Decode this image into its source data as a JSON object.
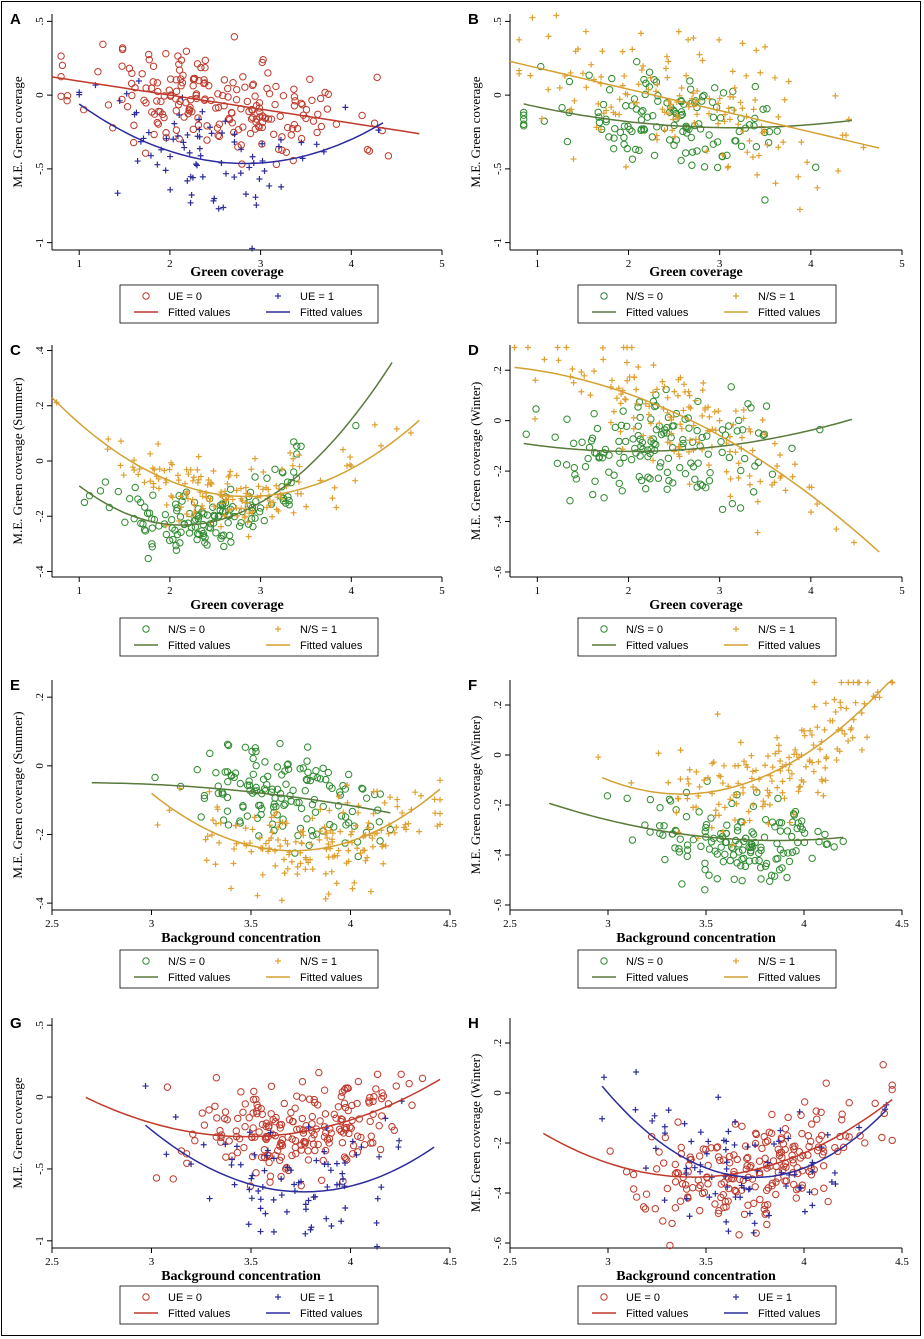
{
  "chart_data": [
    {
      "panel": "A",
      "type": "scatter",
      "xlabel": "Green coverage",
      "ylabel": "M.E. Green coverage",
      "xlim": [
        0.7,
        5.0
      ],
      "ylim": [
        -1.05,
        0.55
      ],
      "xticks": [
        1,
        2,
        3,
        4,
        5
      ],
      "yticks": [
        -1,
        -0.5,
        0,
        0.5
      ],
      "xtick_labels": [
        "1",
        "2",
        "3",
        "4",
        "5"
      ],
      "ytick_labels": [
        "-1",
        "-.5",
        "0",
        ".5"
      ],
      "series": [
        {
          "name": "UE = 0",
          "marker": "circle",
          "color": "#c0392b",
          "n": 210,
          "xmean": 2.55,
          "xsd": 0.75,
          "xmin": 0.8,
          "xmax": 4.7,
          "noise": 0.17,
          "seed": 11
        },
        {
          "name": "UE = 1",
          "marker": "plus",
          "color": "#2c2c9e",
          "n": 80,
          "xmean": 2.45,
          "xsd": 0.7,
          "xmin": 1.0,
          "xmax": 4.3,
          "noise": 0.2,
          "seed": 12
        }
      ],
      "fits": [
        {
          "name": "Fitted values",
          "color": "#c0392b",
          "x0": 0.7,
          "x1": 4.75,
          "coef": [
            0.19,
            -0.095,
            0
          ]
        },
        {
          "name": "Fitted values",
          "color": "#2c2c9e",
          "x0": 1.0,
          "x1": 4.35,
          "coef": [
            0.5,
            -0.68,
            0.12
          ]
        }
      ],
      "legend": [
        "UE = 0",
        "UE = 1",
        "Fitted values",
        "Fitted values"
      ]
    },
    {
      "panel": "B",
      "type": "scatter",
      "xlabel": "Green coverage",
      "ylabel": "M.E. Green coverage",
      "xlim": [
        0.7,
        5.0
      ],
      "ylim": [
        -1.05,
        0.55
      ],
      "xticks": [
        1,
        2,
        3,
        4,
        5
      ],
      "yticks": [
        -1,
        -0.5,
        0,
        0.5
      ],
      "xtick_labels": [
        "1",
        "2",
        "3",
        "4",
        "5"
      ],
      "ytick_labels": [
        "-1",
        "-.5",
        "0",
        ".5"
      ],
      "series": [
        {
          "name": "N/S = 0",
          "marker": "circle",
          "color": "#2e8b2e",
          "n": 140,
          "xmean": 2.5,
          "xsd": 0.7,
          "xmin": 0.85,
          "xmax": 4.45,
          "noise": 0.16,
          "seed": 21
        },
        {
          "name": "N/S = 1",
          "marker": "plus",
          "color": "#e0a030",
          "n": 150,
          "xmean": 2.6,
          "xsd": 0.8,
          "xmin": 0.8,
          "xmax": 4.7,
          "noise": 0.2,
          "seed": 22
        }
      ],
      "fits": [
        {
          "name": "Fitted values",
          "color": "#5a7a3a",
          "x0": 0.85,
          "x1": 4.45,
          "coef": [
            0.08,
            -0.19,
            0.03
          ]
        },
        {
          "name": "Fitted values",
          "color": "#d4a030",
          "x0": 0.7,
          "x1": 4.75,
          "coef": [
            0.33,
            -0.145,
            0
          ]
        }
      ],
      "legend": [
        "N/S = 0",
        "N/S = 1",
        "Fitted values",
        "Fitted values"
      ]
    },
    {
      "panel": "C",
      "type": "scatter",
      "xlabel": "Green coverage",
      "ylabel": "M.E. Green coverage (Summer)",
      "xlim": [
        0.7,
        5.0
      ],
      "ylim": [
        -0.42,
        0.42
      ],
      "xticks": [
        1,
        2,
        3,
        4,
        5
      ],
      "yticks": [
        -0.4,
        -0.2,
        0,
        0.2,
        0.4
      ],
      "xtick_labels": [
        "1",
        "2",
        "3",
        "4",
        "5"
      ],
      "ytick_labels": [
        "-.4",
        "-.2",
        "0",
        ".2",
        ".4"
      ],
      "series": [
        {
          "name": "N/S = 0",
          "marker": "circle",
          "color": "#2e8b2e",
          "n": 150,
          "xmean": 2.4,
          "xsd": 0.6,
          "xmin": 0.85,
          "xmax": 4.45,
          "noise": 0.055,
          "seed": 31
        },
        {
          "name": "N/S = 1",
          "marker": "plus",
          "color": "#e0a030",
          "n": 160,
          "xmean": 2.5,
          "xsd": 0.8,
          "xmin": 0.75,
          "xmax": 4.7,
          "noise": 0.06,
          "seed": 32
        }
      ],
      "fits": [
        {
          "name": "Fitted values",
          "color": "#5a7a3a",
          "x0": 1.0,
          "x1": 4.45,
          "coef": [
            0.27,
            -0.47,
            0.11
          ]
        },
        {
          "name": "Fitted values",
          "color": "#d4a030",
          "x0": 0.7,
          "x1": 4.75,
          "coef": [
            0.5,
            -0.44,
            0.077
          ]
        }
      ],
      "legend": [
        "N/S = 0",
        "N/S = 1",
        "Fitted values",
        "Fitted values"
      ]
    },
    {
      "panel": "D",
      "type": "scatter",
      "xlabel": "Green coverage",
      "ylabel": "M.E. Green coverage (Winter)",
      "xlim": [
        0.7,
        5.0
      ],
      "ylim": [
        -0.62,
        0.3
      ],
      "xticks": [
        1,
        2,
        3,
        4,
        5
      ],
      "yticks": [
        -0.6,
        -0.4,
        -0.2,
        0,
        0.2
      ],
      "xtick_labels": [
        "1",
        "2",
        "3",
        "4",
        "5"
      ],
      "ytick_labels": [
        "-.6",
        "-.4",
        "-.2",
        "0",
        ".2"
      ],
      "series": [
        {
          "name": "N/S = 0",
          "marker": "circle",
          "color": "#2e8b2e",
          "n": 150,
          "xmean": 2.4,
          "xsd": 0.65,
          "xmin": 0.85,
          "xmax": 4.45,
          "noise": 0.1,
          "seed": 41
        },
        {
          "name": "N/S = 1",
          "marker": "plus",
          "color": "#e0a030",
          "n": 150,
          "xmean": 2.5,
          "xsd": 0.8,
          "xmin": 0.75,
          "xmax": 4.7,
          "noise": 0.11,
          "seed": 42
        }
      ],
      "fits": [
        {
          "name": "Fitted values",
          "color": "#5a7a3a",
          "x0": 0.85,
          "x1": 4.45,
          "coef": [
            -0.03,
            -0.09,
            0.022
          ]
        },
        {
          "name": "Fitted values",
          "color": "#d4a030",
          "x0": 0.75,
          "x1": 4.75,
          "coef": [
            0.22,
            0.015,
            -0.036
          ]
        }
      ],
      "legend": [
        "N/S = 0",
        "N/S = 1",
        "Fitted values",
        "Fitted values"
      ]
    },
    {
      "panel": "E",
      "type": "scatter",
      "xlabel": "Background concentration",
      "ylabel": "M.E. Green coverage (Summer)",
      "xlim": [
        2.5,
        4.5
      ],
      "ylim": [
        -0.42,
        0.25
      ],
      "xticks": [
        2.5,
        3,
        3.5,
        4,
        4.5
      ],
      "yticks": [
        -0.4,
        -0.2,
        0,
        0.2
      ],
      "xtick_labels": [
        "2.5",
        "3",
        "3.5",
        "4",
        "4.5"
      ],
      "ytick_labels": [
        "-.4",
        "-.2",
        "0",
        ".2"
      ],
      "series": [
        {
          "name": "N/S = 0",
          "marker": "circle",
          "color": "#2e8b2e",
          "n": 150,
          "xmean": 3.65,
          "xsd": 0.25,
          "xmin": 2.67,
          "xmax": 4.2,
          "noise": 0.07,
          "seed": 51
        },
        {
          "name": "N/S = 1",
          "marker": "plus",
          "color": "#e0a030",
          "n": 170,
          "xmean": 3.85,
          "xsd": 0.3,
          "xmin": 2.95,
          "xmax": 4.45,
          "noise": 0.07,
          "seed": 52
        }
      ],
      "fits": [
        {
          "name": "Fitted values",
          "color": "#5a7a3a",
          "x0": 2.7,
          "x1": 4.2,
          "coef": [
            -0.3,
            0.19,
            -0.036
          ]
        },
        {
          "name": "Fitted values",
          "color": "#d4a030",
          "x0": 3.0,
          "x1": 4.45,
          "coef": [
            4.3,
            -2.45,
            0.33
          ]
        }
      ],
      "legend": [
        "N/S = 0",
        "N/S = 1",
        "Fitted values",
        "Fitted values"
      ]
    },
    {
      "panel": "F",
      "type": "scatter",
      "xlabel": "Background concentration",
      "ylabel": "M.E. Green coverage (Winter)",
      "xlim": [
        2.5,
        4.5
      ],
      "ylim": [
        -0.62,
        0.3
      ],
      "xticks": [
        2.5,
        3,
        3.5,
        4,
        4.5
      ],
      "yticks": [
        -0.6,
        -0.4,
        -0.2,
        0,
        0.2
      ],
      "xtick_labels": [
        "2.5",
        "3",
        "3.5",
        "4",
        "4.5"
      ],
      "ytick_labels": [
        "-.6",
        "-.4",
        "-.2",
        "0",
        ".2"
      ],
      "series": [
        {
          "name": "N/S = 0",
          "marker": "circle",
          "color": "#2e8b2e",
          "n": 150,
          "xmean": 3.65,
          "xsd": 0.25,
          "xmin": 2.67,
          "xmax": 4.2,
          "noise": 0.09,
          "seed": 61
        },
        {
          "name": "N/S = 1",
          "marker": "plus",
          "color": "#e0a030",
          "n": 170,
          "xmean": 3.85,
          "xsd": 0.3,
          "xmin": 2.95,
          "xmax": 4.45,
          "noise": 0.1,
          "seed": 62
        }
      ],
      "fits": [
        {
          "name": "Fitted values",
          "color": "#5a7a3a",
          "x0": 2.7,
          "x1": 4.2,
          "coef": [
            1.3,
            -0.85,
            0.11
          ]
        },
        {
          "name": "Fitted values",
          "color": "#d4a030",
          "x0": 2.97,
          "x1": 4.45,
          "coef": [
            4.4,
            -2.7,
            0.4
          ]
        }
      ],
      "legend": [
        "N/S = 0",
        "N/S = 1",
        "Fitted values",
        "Fitted values"
      ]
    },
    {
      "panel": "G",
      "type": "scatter",
      "xlabel": "Background concentration",
      "ylabel": "M.E. Green coverage",
      "xlim": [
        2.5,
        4.5
      ],
      "ylim": [
        -1.05,
        0.55
      ],
      "xticks": [
        2.5,
        3,
        3.5,
        4,
        4.5
      ],
      "yticks": [
        -1,
        -0.5,
        0,
        0.5
      ],
      "xtick_labels": [
        "2.5",
        "3",
        "3.5",
        "4",
        "4.5"
      ],
      "ytick_labels": [
        "-1",
        "-.5",
        "0",
        ".5"
      ],
      "series": [
        {
          "name": "UE = 0",
          "marker": "circle",
          "color": "#c0392b",
          "n": 220,
          "xmean": 3.75,
          "xsd": 0.3,
          "xmin": 2.67,
          "xmax": 4.45,
          "noise": 0.17,
          "seed": 71
        },
        {
          "name": "UE = 1",
          "marker": "plus",
          "color": "#2c2c9e",
          "n": 80,
          "xmean": 3.7,
          "xsd": 0.3,
          "xmin": 2.97,
          "xmax": 4.42,
          "noise": 0.19,
          "seed": 72
        }
      ],
      "fits": [
        {
          "name": "Fitted values",
          "color": "#c0392b",
          "x0": 2.67,
          "x1": 4.45,
          "coef": [
            4.8,
            -2.92,
            0.42
          ]
        },
        {
          "name": "Fitted values",
          "color": "#2c2c9e",
          "x0": 2.97,
          "x1": 4.42,
          "coef": [
            9.7,
            -5.5,
            0.73
          ]
        }
      ],
      "legend": [
        "UE = 0",
        "UE = 1",
        "Fitted values",
        "Fitted values"
      ]
    },
    {
      "panel": "H",
      "type": "scatter",
      "xlabel": "Background concentration",
      "ylabel": "M.E. Green coverage (Winter)",
      "xlim": [
        2.5,
        4.5
      ],
      "ylim": [
        -0.62,
        0.3
      ],
      "xticks": [
        2.5,
        3,
        3.5,
        4,
        4.5
      ],
      "yticks": [
        -0.6,
        -0.4,
        -0.2,
        0,
        0.2
      ],
      "xtick_labels": [
        "2.5",
        "3",
        "3.5",
        "4",
        "4.5"
      ],
      "ytick_labels": [
        "-.6",
        "-.4",
        "-.2",
        "0",
        ".2"
      ],
      "series": [
        {
          "name": "UE = 0",
          "marker": "circle",
          "color": "#c0392b",
          "n": 220,
          "xmean": 3.75,
          "xsd": 0.3,
          "xmin": 2.67,
          "xmax": 4.45,
          "noise": 0.1,
          "seed": 81
        },
        {
          "name": "UE = 1",
          "marker": "plus",
          "color": "#2c2c9e",
          "n": 80,
          "xmean": 3.7,
          "xsd": 0.3,
          "xmin": 2.97,
          "xmax": 4.42,
          "noise": 0.11,
          "seed": 82
        }
      ],
      "fits": [
        {
          "name": "Fitted values",
          "color": "#c0392b",
          "x0": 2.67,
          "x1": 4.45,
          "coef": [
            3.2,
            -2.06,
            0.3
          ]
        },
        {
          "name": "Fitted values",
          "color": "#2c2c9e",
          "x0": 2.97,
          "x1": 4.42,
          "coef": [
            8.1,
            -4.5,
            0.6
          ]
        }
      ],
      "legend": [
        "UE = 0",
        "UE = 1",
        "Fitted values",
        "Fitted values"
      ]
    }
  ]
}
